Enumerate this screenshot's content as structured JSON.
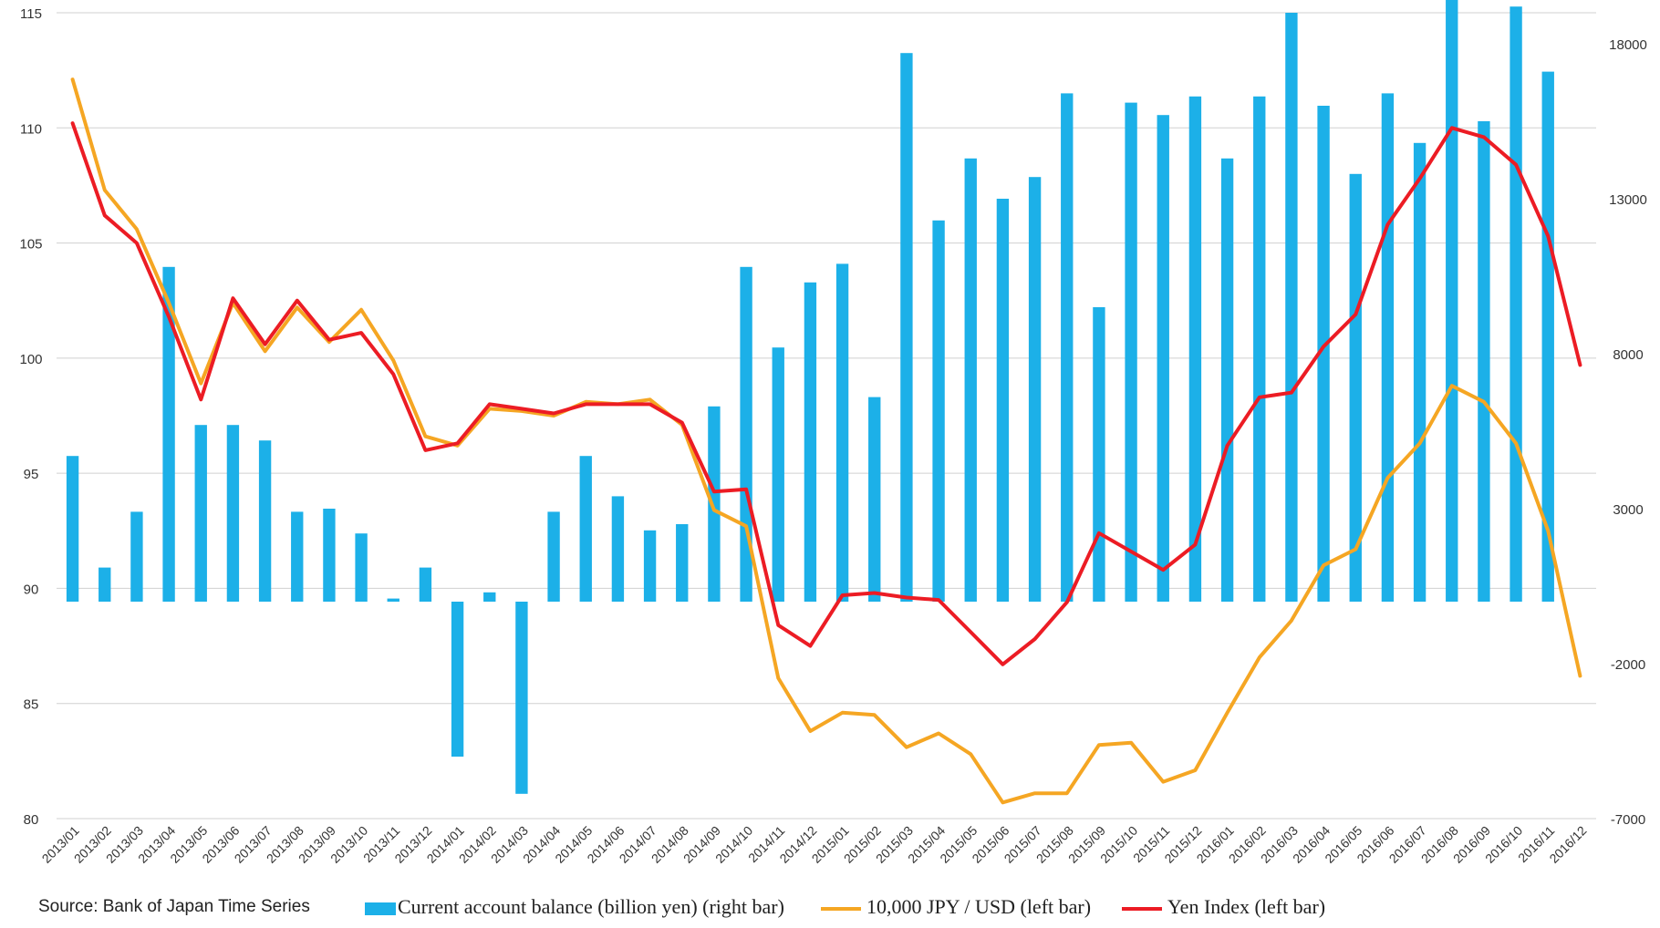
{
  "chart_data": {
    "type": "bar",
    "title": "",
    "categories": [
      "2013/01",
      "2013/02",
      "2013/03",
      "2013/04",
      "2013/05",
      "2013/06",
      "2013/07",
      "2013/08",
      "2013/09",
      "2013/10",
      "2013/11",
      "2013/12",
      "2014/01",
      "2014/02",
      "2014/03",
      "2014/04",
      "2014/05",
      "2014/06",
      "2014/07",
      "2014/08",
      "2014/09",
      "2014/10",
      "2014/11",
      "2014/12",
      "2015/01",
      "2015/02",
      "2015/03",
      "2015/04",
      "2015/05",
      "2015/06",
      "2015/07",
      "2015/08",
      "2015/09",
      "2015/10",
      "2015/11",
      "2015/12",
      "2016/01",
      "2016/02",
      "2016/03",
      "2016/04",
      "2016/05",
      "2016/06",
      "2016/07",
      "2016/08",
      "2016/09",
      "2016/10",
      "2016/11",
      "2016/12"
    ],
    "left_axis": {
      "ylim": [
        80,
        115
      ],
      "ticks": [
        80,
        85,
        90,
        95,
        100,
        105,
        110,
        115
      ]
    },
    "right_axis": {
      "ylim": [
        -7000,
        19000
      ],
      "ticks": [
        -7000,
        -2000,
        3000,
        8000,
        13000,
        18000
      ]
    },
    "series": [
      {
        "name": "Current account balance (billion yen) (right bar)",
        "type": "bar",
        "axis": "right",
        "color": "#1cb0e8",
        "values": [
          4700,
          1100,
          2900,
          10800,
          5700,
          5700,
          5200,
          2900,
          3000,
          2200,
          100,
          1100,
          -5000,
          300,
          -6200,
          2900,
          4700,
          3400,
          2300,
          2500,
          6300,
          10800,
          8200,
          10300,
          10900,
          6600,
          17700,
          12300,
          14300,
          13000,
          13700,
          16400,
          9500,
          16100,
          15700,
          16300,
          14300,
          16300,
          19000,
          16000,
          13800,
          16400,
          14800,
          19700,
          15500,
          19200,
          17100,
          null
        ]
      },
      {
        "name": "10,000 JPY / USD (left bar)",
        "type": "line",
        "axis": "left",
        "color": "#f5a623",
        "values": [
          112.1,
          107.3,
          105.6,
          102.4,
          98.9,
          102.4,
          100.3,
          102.2,
          100.7,
          102.1,
          99.9,
          96.6,
          96.2,
          97.8,
          97.7,
          97.5,
          98.1,
          98.0,
          98.2,
          97.1,
          93.4,
          92.7,
          86.1,
          83.8,
          84.6,
          84.5,
          83.1,
          83.7,
          82.8,
          80.7,
          81.1,
          81.1,
          83.2,
          83.3,
          81.6,
          82.1,
          84.6,
          87.0,
          88.6,
          91.0,
          91.7,
          94.8,
          96.3,
          98.8,
          98.1,
          96.3,
          92.5,
          86.2
        ]
      },
      {
        "name": "Yen Index (left bar)",
        "type": "line",
        "axis": "left",
        "color": "#ec1c24",
        "values": [
          110.2,
          106.2,
          105.0,
          101.8,
          98.2,
          102.6,
          100.6,
          102.5,
          100.8,
          101.1,
          99.3,
          96.0,
          96.3,
          98.0,
          97.8,
          97.6,
          98.0,
          98.0,
          98.0,
          97.2,
          94.2,
          94.3,
          88.4,
          87.5,
          89.7,
          89.8,
          89.6,
          89.5,
          88.1,
          86.7,
          87.8,
          89.4,
          92.4,
          91.6,
          90.8,
          91.9,
          96.2,
          98.3,
          98.5,
          100.5,
          101.9,
          105.8,
          107.8,
          110.0,
          109.6,
          108.4,
          105.3,
          99.7
        ]
      }
    ],
    "legend": {
      "source": "Source: Bank of Japan Time Series",
      "bar": "Current account balance (billion yen) (right bar)",
      "line1": "10,000 JPY / USD (left bar)",
      "line2": "Yen Index (left bar)"
    }
  }
}
